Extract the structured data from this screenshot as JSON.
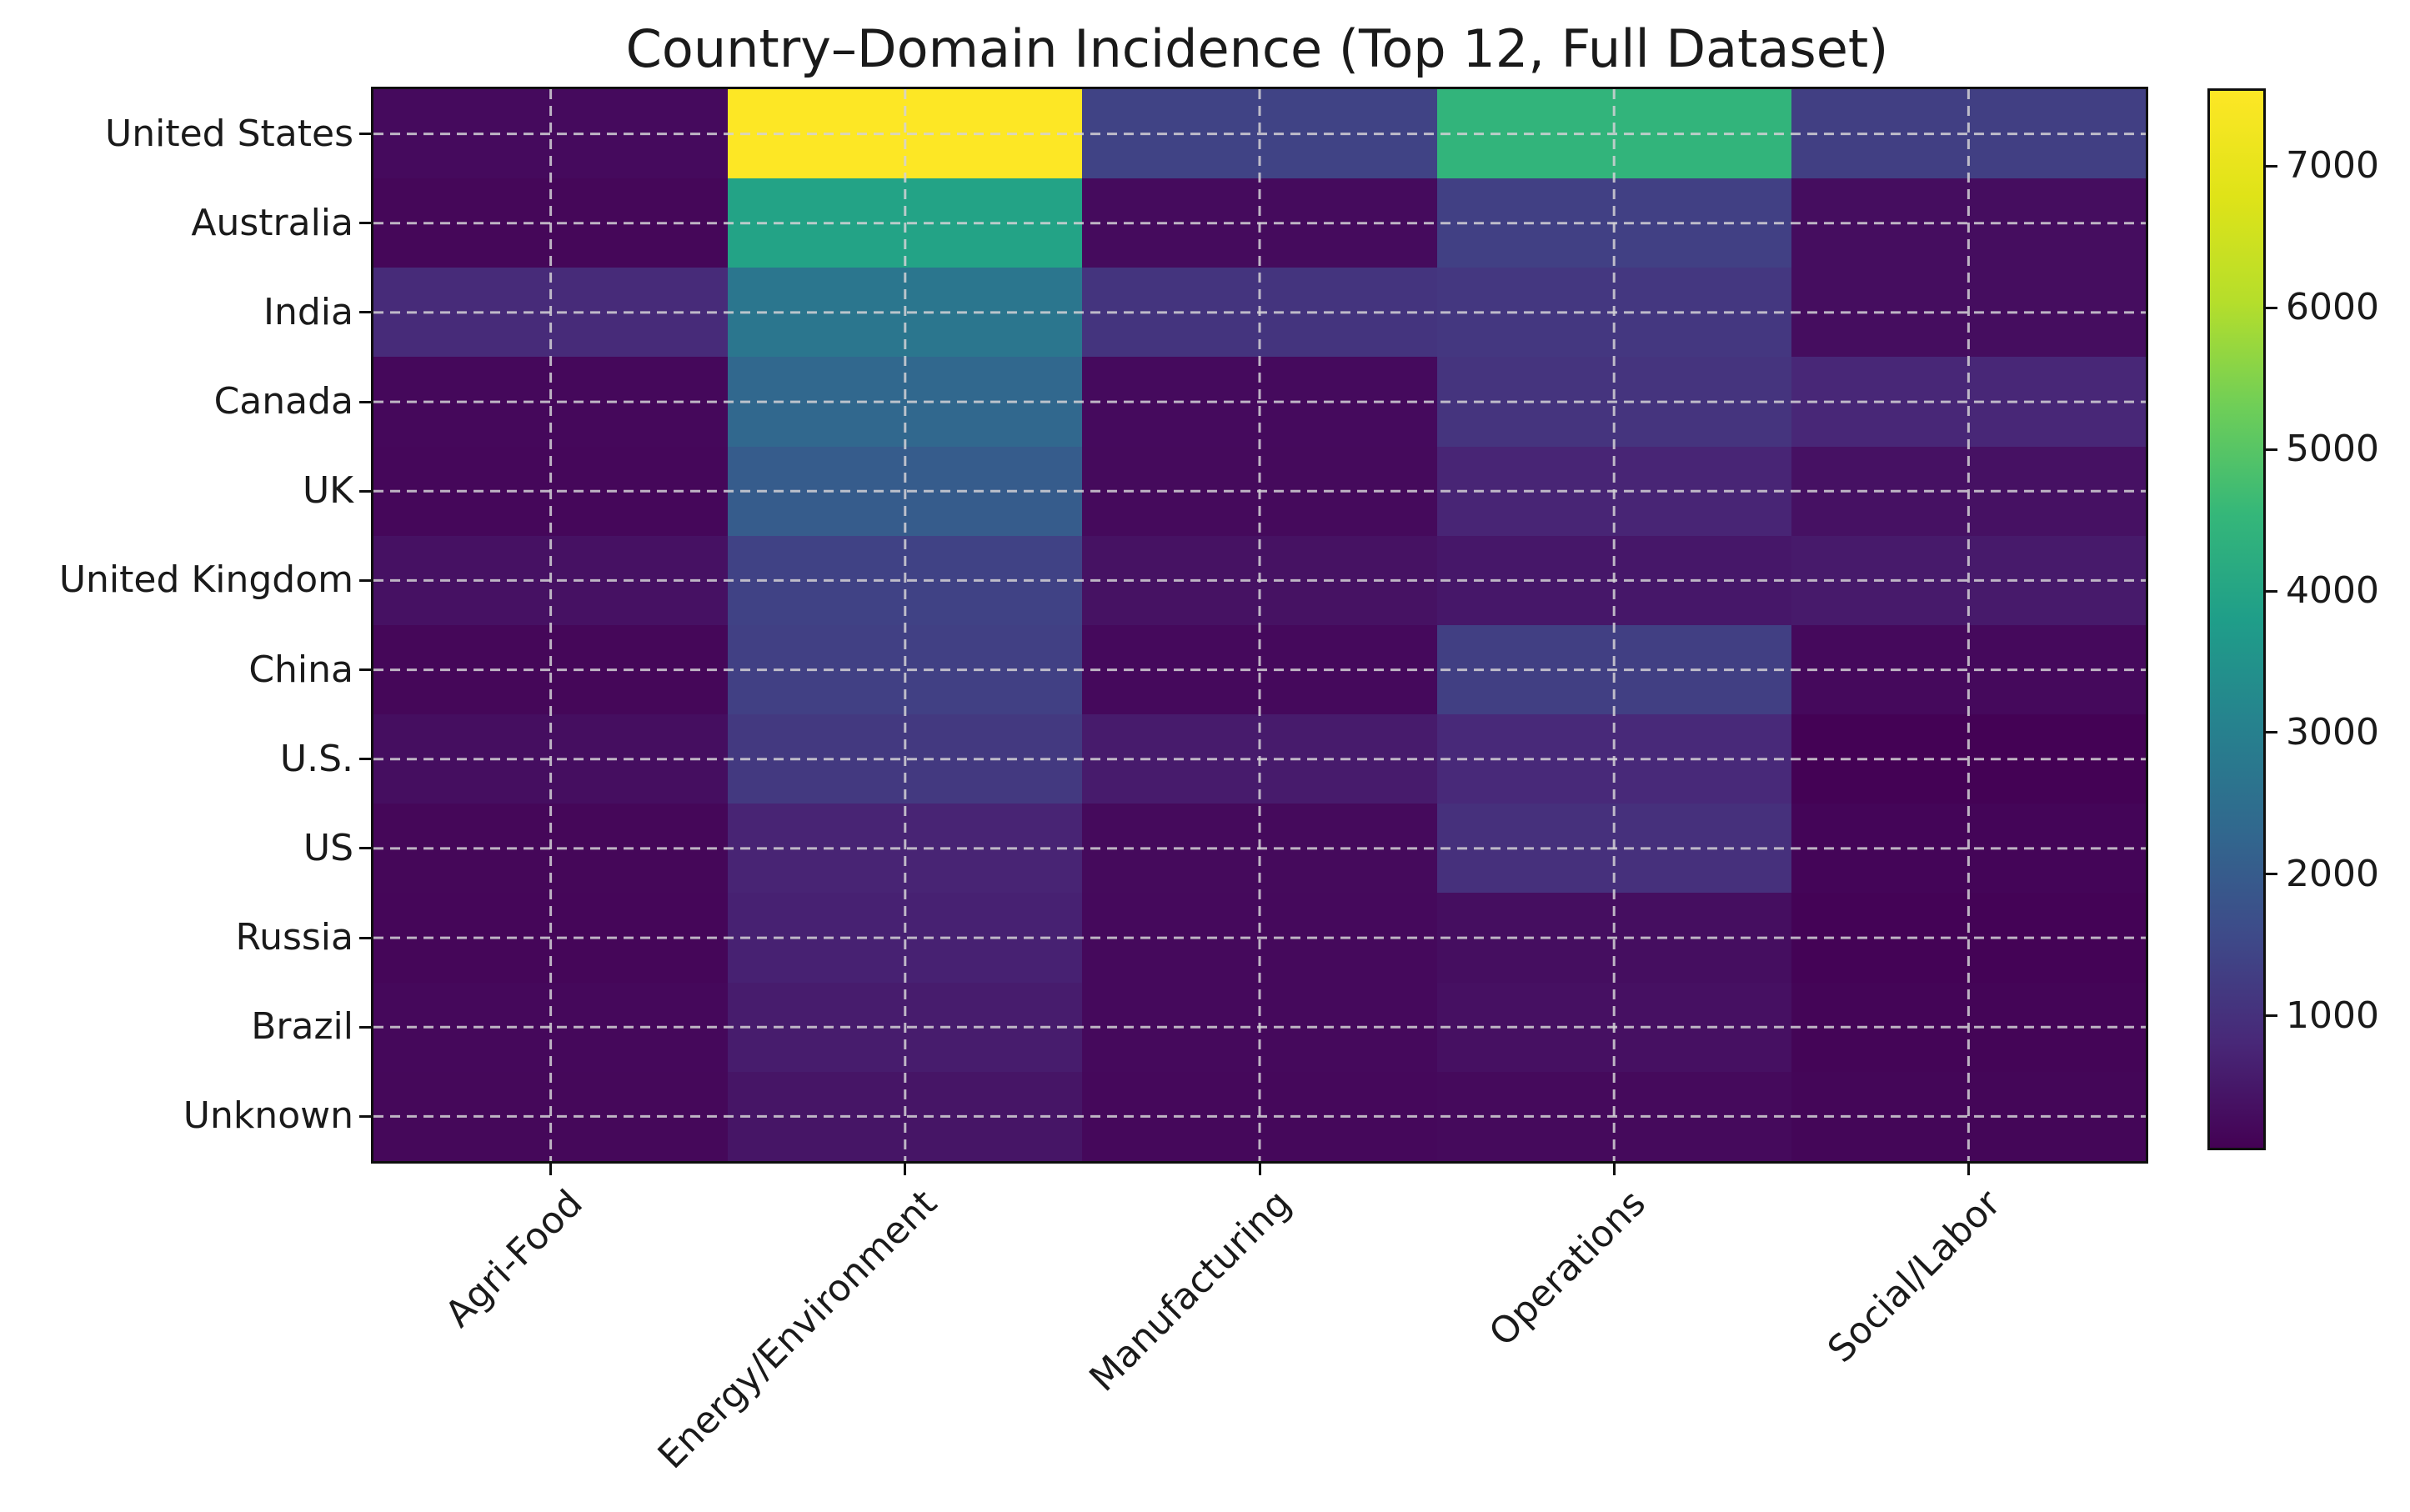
{
  "figure": {
    "title": "Country–Domain Incidence (Top 12, Full Dataset)"
  },
  "chart_data": {
    "type": "heatmap",
    "title": "Country–Domain Incidence (Top 12, Full Dataset)",
    "rows": [
      "United States",
      "Australia",
      "India",
      "Canada",
      "UK",
      "United Kingdom",
      "China",
      "U.S.",
      "US",
      "Russia",
      "Brazil",
      "Unknown"
    ],
    "columns": [
      "Agri-Food",
      "Energy/Environment",
      "Manufacturing",
      "Operations",
      "Social/Labor"
    ],
    "values": [
      [
        250,
        7530,
        1400,
        4450,
        1320
      ],
      [
        180,
        3950,
        260,
        1340,
        300
      ],
      [
        880,
        2720,
        1080,
        1150,
        290
      ],
      [
        210,
        2310,
        250,
        1070,
        790
      ],
      [
        190,
        2010,
        240,
        760,
        380
      ],
      [
        380,
        1380,
        390,
        500,
        550
      ],
      [
        180,
        1340,
        230,
        1320,
        230
      ],
      [
        310,
        1180,
        560,
        840,
        90
      ],
      [
        180,
        740,
        240,
        1000,
        150
      ],
      [
        170,
        690,
        230,
        320,
        110
      ],
      [
        210,
        590,
        230,
        360,
        140
      ],
      [
        200,
        450,
        210,
        240,
        160
      ]
    ],
    "colormap": "viridis",
    "vmin": 70,
    "vmax": 7530,
    "colorbar_ticks": [
      1000,
      2000,
      3000,
      4000,
      5000,
      6000,
      7000
    ],
    "grid": "dashed lines at row/column centers",
    "legend_position": "colorbar-right"
  }
}
